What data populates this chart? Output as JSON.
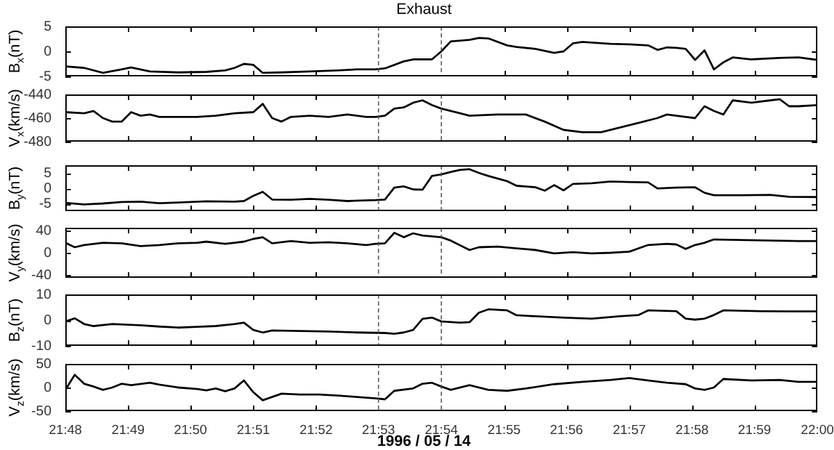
{
  "chart_data": [
    {
      "type": "line",
      "title": "Exhaust",
      "ylabel": "B$_{x}$(nT)",
      "xlim": [
        21.8,
        22.0
      ],
      "ylim": [
        -5,
        5
      ],
      "yticks": [
        -5,
        0,
        5
      ],
      "tick_labels": "y",
      "legend": false,
      "grid": false,
      "marker": "none",
      "xticks": [
        {
          "value": 21.8,
          "label": null
        },
        {
          "value": 21.8167,
          "label": null
        },
        {
          "value": 21.8333,
          "label": null
        },
        {
          "value": 21.85,
          "label": null
        },
        {
          "value": 21.8667,
          "label": null
        },
        {
          "value": 21.8833,
          "label": null
        },
        {
          "value": 21.9,
          "label": null
        },
        {
          "value": 21.9167,
          "label": null
        },
        {
          "value": 21.9333,
          "label": null
        },
        {
          "value": 21.95,
          "label": null
        },
        {
          "value": 21.9667,
          "label": null
        },
        {
          "value": 21.9833,
          "label": null
        },
        {
          "value": 22.0,
          "label": null
        }
      ],
      "ref_lines": [
        {
          "axis": "x",
          "value": 21.8833,
          "line_style": "dashed"
        },
        {
          "axis": "x",
          "value": 21.9,
          "line_style": "dashed"
        }
      ],
      "x": [
        21.8,
        21.805,
        21.81,
        21.815,
        21.8175,
        21.8225,
        21.83,
        21.8375,
        21.8425,
        21.845,
        21.8475,
        21.85,
        21.8525,
        21.8575,
        21.865,
        21.8725,
        21.8775,
        21.8825,
        21.885,
        21.89,
        21.8925,
        21.8975,
        21.9,
        21.9025,
        21.9075,
        21.91,
        21.9125,
        21.9175,
        21.92,
        21.925,
        21.93,
        21.9325,
        21.935,
        21.9375,
        21.945,
        21.95,
        21.955,
        21.9575,
        21.96,
        21.9625,
        21.965,
        21.9675,
        21.97,
        21.9725,
        21.975,
        21.9775,
        21.9825,
        21.99,
        21.995,
        22.0
      ],
      "series": [
        {
          "color": "#000000",
          "values": [
            -3.0,
            -3.3,
            -4.3,
            -3.6,
            -3.2,
            -4.0,
            -4.2,
            -4.1,
            -3.8,
            -3.3,
            -2.5,
            -2.7,
            -4.3,
            -4.2,
            -4.0,
            -3.8,
            -3.6,
            -3.6,
            -3.4,
            -2.0,
            -1.6,
            -1.6,
            0.0,
            2.0,
            2.3,
            2.7,
            2.6,
            1.2,
            0.9,
            0.5,
            -0.3,
            0.0,
            1.6,
            1.9,
            1.5,
            1.4,
            1.2,
            0.3,
            0.8,
            0.7,
            0.5,
            -1.7,
            0.2,
            -3.6,
            -2.2,
            -1.2,
            -1.6,
            -1.3,
            -1.2,
            -1.7
          ]
        }
      ]
    },
    {
      "type": "line",
      "ylabel": "V$_{x}$(km/s)",
      "xlim": [
        21.8,
        22.0
      ],
      "ylim": [
        -480,
        -440
      ],
      "yticks": [
        -480,
        -460,
        -440
      ],
      "tick_labels": "y",
      "legend": false,
      "grid": false,
      "marker": "none",
      "xticks": [
        {
          "value": 21.8,
          "label": null
        },
        {
          "value": 21.8167,
          "label": null
        },
        {
          "value": 21.8333,
          "label": null
        },
        {
          "value": 21.85,
          "label": null
        },
        {
          "value": 21.8667,
          "label": null
        },
        {
          "value": 21.8833,
          "label": null
        },
        {
          "value": 21.9,
          "label": null
        },
        {
          "value": 21.9167,
          "label": null
        },
        {
          "value": 21.9333,
          "label": null
        },
        {
          "value": 21.95,
          "label": null
        },
        {
          "value": 21.9667,
          "label": null
        },
        {
          "value": 21.9833,
          "label": null
        },
        {
          "value": 22.0,
          "label": null
        }
      ],
      "ref_lines": [
        {
          "axis": "x",
          "value": 21.8833,
          "line_style": "dashed"
        },
        {
          "axis": "x",
          "value": 21.9,
          "line_style": "dashed"
        }
      ],
      "x": [
        21.8,
        21.805,
        21.8075,
        21.81,
        21.8125,
        21.815,
        21.8175,
        21.82,
        21.8225,
        21.825,
        21.835,
        21.84,
        21.845,
        21.85,
        21.8525,
        21.855,
        21.8575,
        21.86,
        21.865,
        21.87,
        21.875,
        21.88,
        21.8825,
        21.885,
        21.8875,
        21.89,
        21.8925,
        21.895,
        21.8975,
        21.9,
        21.905,
        21.9075,
        21.915,
        21.9225,
        21.9275,
        21.9325,
        21.9375,
        21.9425,
        21.9475,
        21.9525,
        21.9575,
        21.96,
        21.965,
        21.9675,
        21.97,
        21.9725,
        21.975,
        21.9775,
        21.9825,
        21.9875,
        21.99,
        21.9925,
        21.995,
        22.0
      ],
      "series": [
        {
          "color": "#000000",
          "values": [
            -455,
            -456,
            -454,
            -460,
            -463,
            -463,
            -455,
            -458,
            -457,
            -459,
            -459,
            -458,
            -456,
            -455,
            -448,
            -460,
            -463,
            -459,
            -458,
            -459,
            -457,
            -459,
            -459,
            -458,
            -452,
            -451,
            -447,
            -445,
            -449,
            -452,
            -456,
            -458,
            -457,
            -457,
            -463,
            -470,
            -472,
            -472,
            -468,
            -464,
            -460,
            -457,
            -459,
            -460,
            -450,
            -454,
            -457,
            -445,
            -447,
            -445,
            -444,
            -450,
            -450,
            -449
          ]
        }
      ]
    },
    {
      "type": "line",
      "ylabel": "B$_{y}$(nT)",
      "xlim": [
        21.8,
        22.0
      ],
      "ylim": [
        -7.5,
        7.5
      ],
      "yticks": [
        -5,
        0,
        5
      ],
      "tick_labels": "y",
      "legend": false,
      "grid": false,
      "marker": "none",
      "xticks": [
        {
          "value": 21.8,
          "label": null
        },
        {
          "value": 21.8167,
          "label": null
        },
        {
          "value": 21.8333,
          "label": null
        },
        {
          "value": 21.85,
          "label": null
        },
        {
          "value": 21.8667,
          "label": null
        },
        {
          "value": 21.8833,
          "label": null
        },
        {
          "value": 21.9,
          "label": null
        },
        {
          "value": 21.9167,
          "label": null
        },
        {
          "value": 21.9333,
          "label": null
        },
        {
          "value": 21.95,
          "label": null
        },
        {
          "value": 21.9667,
          "label": null
        },
        {
          "value": 21.9833,
          "label": null
        },
        {
          "value": 22.0,
          "label": null
        }
      ],
      "ref_lines": [
        {
          "axis": "x",
          "value": 21.8833,
          "line_style": "dashed"
        },
        {
          "axis": "x",
          "value": 21.9,
          "line_style": "dashed"
        }
      ],
      "x": [
        21.8,
        21.805,
        21.81,
        21.815,
        21.82,
        21.825,
        21.83,
        21.8375,
        21.845,
        21.8475,
        21.85,
        21.8525,
        21.855,
        21.86,
        21.865,
        21.87,
        21.875,
        21.8825,
        21.885,
        21.8875,
        21.89,
        21.8925,
        21.895,
        21.8975,
        21.9,
        21.9025,
        21.905,
        21.9075,
        21.91,
        21.9125,
        21.9175,
        21.92,
        21.925,
        21.9275,
        21.93,
        21.9325,
        21.935,
        21.94,
        21.945,
        21.95,
        21.955,
        21.9575,
        21.9625,
        21.9675,
        21.97,
        21.9725,
        21.98,
        21.9875,
        21.9925,
        22.0
      ],
      "series": [
        {
          "color": "#000000",
          "values": [
            -4.8,
            -5.3,
            -5.0,
            -4.5,
            -4.4,
            -4.9,
            -4.7,
            -4.3,
            -4.4,
            -4.2,
            -2.5,
            -1.2,
            -3.7,
            -3.8,
            -3.5,
            -3.8,
            -4.2,
            -3.9,
            -3.7,
            0.2,
            0.6,
            -0.4,
            -0.5,
            4.0,
            4.5,
            5.3,
            6.0,
            6.2,
            5.0,
            4.0,
            2.3,
            0.8,
            0.3,
            -0.8,
            1.0,
            -0.7,
            1.4,
            1.6,
            2.2,
            2.0,
            1.9,
            -0.1,
            0.2,
            0.3,
            -1.5,
            -2.3,
            -2.3,
            -2.2,
            -2.8,
            -2.9
          ]
        }
      ]
    },
    {
      "type": "line",
      "ylabel": "V$_{y}$(km/s)",
      "xlim": [
        21.8,
        22.0
      ],
      "ylim": [
        -45,
        45
      ],
      "yticks": [
        -40,
        0,
        40
      ],
      "tick_labels": "y",
      "legend": false,
      "grid": false,
      "marker": "none",
      "xticks": [
        {
          "value": 21.8,
          "label": null
        },
        {
          "value": 21.8167,
          "label": null
        },
        {
          "value": 21.8333,
          "label": null
        },
        {
          "value": 21.85,
          "label": null
        },
        {
          "value": 21.8667,
          "label": null
        },
        {
          "value": 21.8833,
          "label": null
        },
        {
          "value": 21.9,
          "label": null
        },
        {
          "value": 21.9167,
          "label": null
        },
        {
          "value": 21.9333,
          "label": null
        },
        {
          "value": 21.95,
          "label": null
        },
        {
          "value": 21.9667,
          "label": null
        },
        {
          "value": 21.9833,
          "label": null
        },
        {
          "value": 22.0,
          "label": null
        }
      ],
      "ref_lines": [
        {
          "axis": "x",
          "value": 21.8833,
          "line_style": "dashed"
        },
        {
          "axis": "x",
          "value": 21.9,
          "line_style": "dashed"
        }
      ],
      "x": [
        21.8,
        21.8025,
        21.805,
        21.81,
        21.815,
        21.82,
        21.825,
        21.83,
        21.835,
        21.8375,
        21.8425,
        21.8475,
        21.85,
        21.8525,
        21.855,
        21.86,
        21.865,
        21.87,
        21.875,
        21.88,
        21.8825,
        21.885,
        21.8875,
        21.89,
        21.8925,
        21.895,
        21.9,
        21.9025,
        21.9075,
        21.91,
        21.915,
        21.92,
        21.925,
        21.93,
        21.935,
        21.94,
        21.945,
        21.95,
        21.955,
        21.96,
        21.9625,
        21.965,
        21.9675,
        21.97,
        21.9725,
        21.98,
        21.9875,
        21.995,
        22.0
      ],
      "series": [
        {
          "color": "#000000",
          "values": [
            18,
            10,
            14,
            18,
            17,
            12,
            14,
            17,
            18,
            20,
            16,
            20,
            25,
            28,
            17,
            21,
            18,
            19,
            17,
            14,
            16,
            17,
            36,
            28,
            35,
            31,
            28,
            22,
            5,
            10,
            11,
            8,
            5,
            -1,
            1,
            -1,
            0,
            2,
            14,
            16,
            15,
            7,
            14,
            18,
            24,
            23,
            22,
            21,
            21
          ]
        }
      ]
    },
    {
      "type": "line",
      "ylabel": "B$_{z}$(nT)",
      "xlim": [
        21.8,
        22.0
      ],
      "ylim": [
        -10,
        10
      ],
      "yticks": [
        -10,
        0,
        10
      ],
      "tick_labels": "y",
      "legend": false,
      "grid": false,
      "marker": "none",
      "xticks": [
        {
          "value": 21.8,
          "label": null
        },
        {
          "value": 21.8167,
          "label": null
        },
        {
          "value": 21.8333,
          "label": null
        },
        {
          "value": 21.85,
          "label": null
        },
        {
          "value": 21.8667,
          "label": null
        },
        {
          "value": 21.8833,
          "label": null
        },
        {
          "value": 21.9,
          "label": null
        },
        {
          "value": 21.9167,
          "label": null
        },
        {
          "value": 21.9333,
          "label": null
        },
        {
          "value": 21.95,
          "label": null
        },
        {
          "value": 21.9667,
          "label": null
        },
        {
          "value": 21.9833,
          "label": null
        },
        {
          "value": 22.0,
          "label": null
        }
      ],
      "ref_lines": [
        {
          "axis": "x",
          "value": 21.8833,
          "line_style": "dashed"
        },
        {
          "axis": "x",
          "value": 21.9,
          "line_style": "dashed"
        }
      ],
      "x": [
        21.8,
        21.8025,
        21.805,
        21.8075,
        21.8125,
        21.82,
        21.825,
        21.83,
        21.835,
        21.84,
        21.845,
        21.8475,
        21.85,
        21.8525,
        21.855,
        21.8625,
        21.87,
        21.8775,
        21.885,
        21.8875,
        21.89,
        21.8925,
        21.895,
        21.8975,
        21.9,
        21.905,
        21.9075,
        21.91,
        21.9125,
        21.9175,
        21.92,
        21.925,
        21.9325,
        21.94,
        21.9475,
        21.9525,
        21.955,
        21.9625,
        21.965,
        21.9675,
        21.97,
        21.9725,
        21.975,
        21.985,
        21.9925,
        22.0
      ],
      "series": [
        {
          "color": "#000000",
          "values": [
            -0.5,
            0.7,
            -1.5,
            -2.3,
            -1.5,
            -2.0,
            -2.5,
            -2.9,
            -2.6,
            -2.3,
            -1.5,
            -1.0,
            -3.8,
            -4.8,
            -4.0,
            -4.2,
            -4.4,
            -4.8,
            -5.0,
            -5.3,
            -4.8,
            -3.8,
            0.5,
            1.0,
            -0.5,
            -1.0,
            -0.8,
            2.9,
            4.2,
            3.8,
            1.9,
            1.5,
            1.0,
            0.6,
            1.5,
            2.0,
            3.8,
            3.5,
            0.6,
            0.2,
            0.6,
            2.0,
            3.8,
            3.5,
            3.4,
            3.4
          ]
        }
      ]
    },
    {
      "type": "line",
      "ylabel": "V$_{z}$(km/s)",
      "xlabel": "1996 / 05 / 14",
      "xlim": [
        21.8,
        22.0
      ],
      "ylim": [
        -50,
        50
      ],
      "yticks": [
        -50,
        0,
        50
      ],
      "legend": false,
      "grid": false,
      "marker": "none",
      "xticks": [
        {
          "value": 21.8,
          "label": "21:48"
        },
        {
          "value": 21.8167,
          "label": "21:49"
        },
        {
          "value": 21.8333,
          "label": "21:50"
        },
        {
          "value": 21.85,
          "label": "21:51"
        },
        {
          "value": 21.8667,
          "label": "21:52"
        },
        {
          "value": 21.8833,
          "label": "21:53"
        },
        {
          "value": 21.9,
          "label": "21:54"
        },
        {
          "value": 21.9167,
          "label": "21:55"
        },
        {
          "value": 21.9333,
          "label": "21:56"
        },
        {
          "value": 21.95,
          "label": "21:57"
        },
        {
          "value": 21.9667,
          "label": "21:58"
        },
        {
          "value": 21.9833,
          "label": "21:59"
        },
        {
          "value": 22.0,
          "label": "22:00"
        }
      ],
      "ref_lines": [
        {
          "axis": "x",
          "value": 21.8833,
          "line_style": "dashed"
        },
        {
          "axis": "x",
          "value": 21.9,
          "line_style": "dashed"
        }
      ],
      "x": [
        21.8,
        21.8025,
        21.805,
        21.8075,
        21.81,
        21.8125,
        21.815,
        21.8175,
        21.8225,
        21.825,
        21.83,
        21.835,
        21.8375,
        21.84,
        21.8425,
        21.845,
        21.8475,
        21.85,
        21.8525,
        21.855,
        21.8575,
        21.8625,
        21.8675,
        21.8725,
        21.8775,
        21.8825,
        21.885,
        21.8875,
        21.8925,
        21.895,
        21.8975,
        21.9,
        21.9025,
        21.9075,
        21.9125,
        21.9175,
        21.9225,
        21.93,
        21.9375,
        21.945,
        21.95,
        21.955,
        21.96,
        21.965,
        21.9675,
        21.97,
        21.9725,
        21.975,
        21.9825,
        21.99,
        21.995,
        22.0
      ],
      "series": [
        {
          "color": "#000000",
          "values": [
            -5,
            27,
            8,
            2,
            -5,
            0,
            8,
            5,
            10,
            6,
            0,
            -3,
            -6,
            -2,
            -8,
            -2,
            15,
            -10,
            -27,
            -20,
            -13,
            -15,
            -15,
            -17,
            -20,
            -23,
            -25,
            -7,
            -2,
            8,
            10,
            2,
            -5,
            5,
            -5,
            -7,
            -2,
            7,
            12,
            16,
            20,
            15,
            10,
            7,
            -2,
            -5,
            0,
            18,
            15,
            16,
            12,
            12
          ]
        }
      ]
    }
  ]
}
